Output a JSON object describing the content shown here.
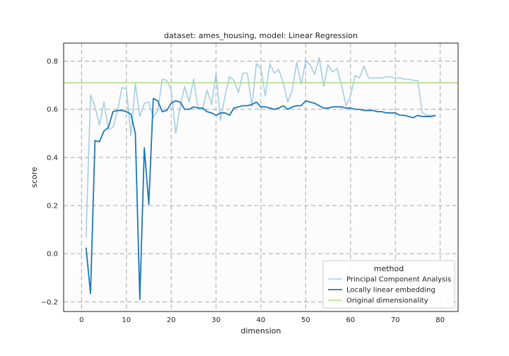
{
  "chart_data": {
    "type": "line",
    "title": "dataset: ames_housing, model: Linear Regression",
    "xlabel": "dimension",
    "ylabel": "score",
    "xlim": [
      -4,
      84
    ],
    "ylim": [
      -0.24,
      0.875
    ],
    "xticks": [
      0,
      10,
      20,
      30,
      40,
      50,
      60,
      70,
      80
    ],
    "yticks": [
      -0.2,
      0.0,
      0.2,
      0.4,
      0.6,
      0.8
    ],
    "xtick_labels": [
      "0",
      "10",
      "20",
      "30",
      "40",
      "50",
      "60",
      "70",
      "80"
    ],
    "ytick_labels": [
      "−0.2",
      "0.0",
      "0.2",
      "0.4",
      "0.6",
      "0.8"
    ],
    "grid": true,
    "legend": {
      "title": "method",
      "placement": "lower-right",
      "entries": [
        "Principal Component Analysis",
        "Locally linear embedding",
        "Original dimensionality"
      ]
    },
    "series": [
      {
        "name": "Principal Component Analysis",
        "color": "#a6cee3",
        "x": [
          1,
          2,
          3,
          4,
          5,
          6,
          7,
          8,
          9,
          10,
          11,
          12,
          13,
          14,
          15,
          16,
          17,
          18,
          19,
          20,
          21,
          22,
          23,
          24,
          25,
          26,
          27,
          28,
          29,
          30,
          31,
          32,
          33,
          34,
          35,
          36,
          37,
          38,
          39,
          40,
          41,
          42,
          43,
          44,
          45,
          46,
          47,
          48,
          49,
          50,
          51,
          52,
          53,
          54,
          55,
          56,
          57,
          58,
          59,
          60,
          61,
          62,
          63,
          64,
          65,
          66,
          67,
          68,
          69,
          70,
          71,
          72,
          73,
          74,
          75,
          76,
          77,
          78,
          79
        ],
        "values": [
          0.07,
          0.66,
          0.61,
          0.535,
          0.63,
          0.515,
          0.525,
          0.59,
          0.69,
          0.685,
          0.49,
          0.705,
          0.57,
          0.625,
          0.63,
          0.565,
          0.595,
          0.725,
          0.72,
          0.68,
          0.5,
          0.61,
          0.695,
          0.63,
          0.725,
          0.6,
          0.6,
          0.68,
          0.62,
          0.75,
          0.555,
          0.655,
          0.735,
          0.72,
          0.67,
          0.75,
          0.75,
          0.61,
          0.79,
          0.77,
          0.655,
          0.79,
          0.75,
          0.765,
          0.71,
          0.63,
          0.68,
          0.795,
          0.705,
          0.8,
          0.785,
          0.745,
          0.815,
          0.695,
          0.785,
          0.755,
          0.77,
          0.7,
          0.615,
          0.655,
          0.74,
          0.73,
          0.78,
          0.73,
          0.73,
          0.73,
          0.73,
          0.735,
          0.735,
          0.73,
          0.73,
          0.725,
          0.725,
          0.72,
          0.72,
          0.585,
          0.575,
          0.575,
          0.575
        ]
      },
      {
        "name": "Locally linear embedding",
        "color": "#1f78b4",
        "x": [
          1,
          2,
          3,
          4,
          5,
          6,
          7,
          8,
          9,
          10,
          11,
          12,
          13,
          14,
          15,
          16,
          17,
          18,
          19,
          20,
          21,
          22,
          23,
          24,
          25,
          26,
          27,
          28,
          29,
          30,
          31,
          32,
          33,
          34,
          35,
          36,
          37,
          38,
          39,
          40,
          41,
          42,
          43,
          44,
          45,
          46,
          47,
          48,
          49,
          50,
          51,
          52,
          53,
          54,
          55,
          56,
          57,
          58,
          59,
          60,
          61,
          62,
          63,
          64,
          65,
          66,
          67,
          68,
          69,
          70,
          71,
          72,
          73,
          74,
          75,
          76,
          77,
          78,
          79
        ],
        "values": [
          0.025,
          -0.165,
          0.47,
          0.465,
          0.51,
          0.525,
          0.59,
          0.595,
          0.595,
          0.59,
          0.58,
          0.5,
          -0.19,
          0.44,
          0.205,
          0.645,
          0.635,
          0.59,
          0.595,
          0.625,
          0.635,
          0.63,
          0.6,
          0.6,
          0.61,
          0.605,
          0.605,
          0.59,
          0.585,
          0.575,
          0.585,
          0.585,
          0.575,
          0.605,
          0.61,
          0.615,
          0.615,
          0.62,
          0.63,
          0.61,
          0.61,
          0.605,
          0.6,
          0.605,
          0.615,
          0.6,
          0.61,
          0.615,
          0.615,
          0.635,
          0.63,
          0.625,
          0.615,
          0.605,
          0.605,
          0.61,
          0.61,
          0.61,
          0.605,
          0.605,
          0.6,
          0.6,
          0.595,
          0.595,
          0.595,
          0.59,
          0.59,
          0.585,
          0.585,
          0.585,
          0.575,
          0.575,
          0.57,
          0.565,
          0.575,
          0.57,
          0.57,
          0.57,
          0.575
        ]
      },
      {
        "name": "Original dimensionality",
        "color": "#b2df8a",
        "horizontal_line": 0.71
      }
    ]
  }
}
